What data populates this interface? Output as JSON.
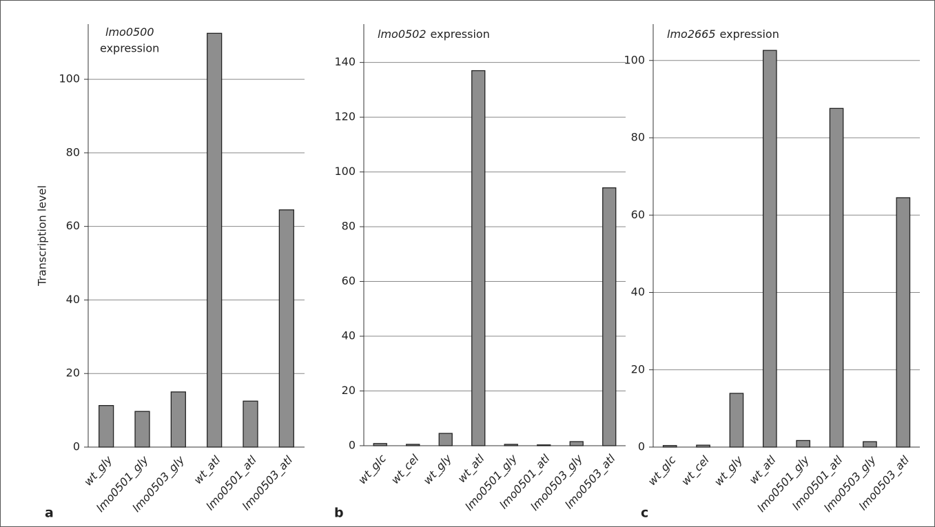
{
  "chart_data": [
    {
      "type": "bar",
      "panel_label": "a",
      "title": [
        "lmo0500",
        "expression"
      ],
      "ylabel": "Transcription level",
      "categories": [
        "wt_gly",
        "lmo0501_gly",
        "lmo0503_gly",
        "wt_atl",
        "lmo0501_atl",
        "lmo0503_atl"
      ],
      "values": [
        11.3,
        9.7,
        15,
        112.5,
        12.5,
        64.5
      ],
      "color": "#8e8e8e",
      "ylim": [
        0,
        115
      ],
      "yticks": [
        0,
        20,
        40,
        60,
        80,
        100
      ],
      "grid": true
    },
    {
      "type": "bar",
      "panel_label": "b",
      "title": [
        "lmo0502",
        "expression"
      ],
      "categories": [
        "wt_glc",
        "wt_cel",
        "wt_gly",
        "wt_atl",
        "lmo0501_gly",
        "lmo0501_atl",
        "lmo0503_gly",
        "lmo0503_atl"
      ],
      "values": [
        0.8,
        0.5,
        4.5,
        137,
        0.5,
        0.3,
        1.5,
        94.2
      ],
      "color": "#8e8e8e",
      "ylim": [
        0,
        154
      ],
      "yticks": [
        0,
        20,
        40,
        60,
        80,
        100,
        120,
        140
      ],
      "grid": true
    },
    {
      "type": "bar",
      "panel_label": "c",
      "title": [
        "lmo2665",
        "expression"
      ],
      "categories": [
        "wt_glc",
        "wt_cel",
        "wt_gly",
        "wt_atl",
        "lmo0501_gly",
        "lmo0501_atl",
        "lmo0503_gly",
        "lmo0503_atl"
      ],
      "values": [
        0.4,
        0.5,
        13.9,
        102.6,
        1.7,
        87.6,
        1.4,
        64.5
      ],
      "color": "#8e8e8e",
      "ylim": [
        0,
        109.4
      ],
      "yticks": [
        0,
        20,
        40,
        60,
        80,
        100
      ],
      "grid": true
    }
  ]
}
